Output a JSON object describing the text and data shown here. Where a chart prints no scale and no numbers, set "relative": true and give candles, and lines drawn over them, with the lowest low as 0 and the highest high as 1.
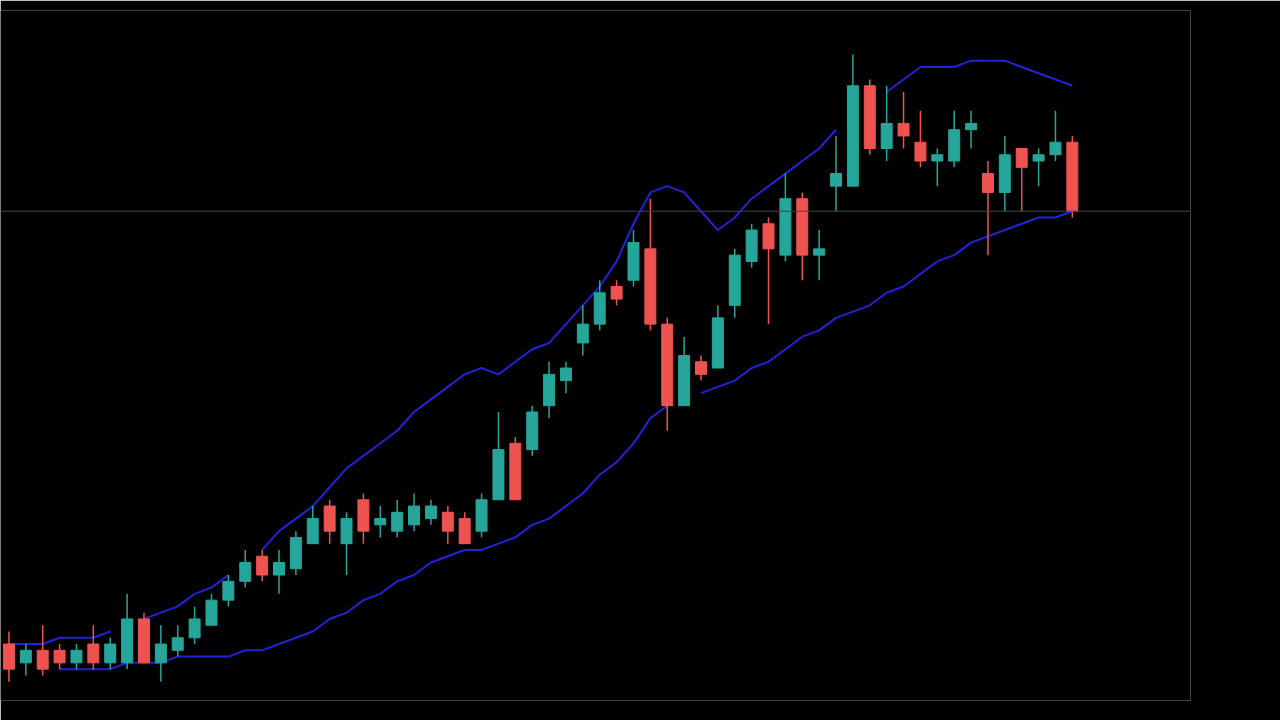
{
  "chart_data": {
    "type": "candlestick",
    "relative": true,
    "tick_labels": false,
    "grid": false,
    "categories": [
      null,
      null,
      null,
      null,
      null,
      null,
      null,
      null,
      null,
      null,
      null,
      null,
      null,
      null,
      null,
      null,
      null,
      null,
      null,
      null,
      null,
      null,
      null,
      null,
      null,
      null,
      null,
      null,
      null,
      null,
      null,
      null,
      null,
      null,
      null,
      null,
      null,
      null,
      null,
      null,
      null,
      null,
      null,
      null,
      null,
      null,
      null,
      null,
      null,
      null,
      null,
      null,
      null,
      null,
      null,
      null,
      null,
      null,
      null,
      null,
      null,
      null,
      null,
      null
    ],
    "ohlc": [
      [
        0.06,
        0.08,
        0,
        0.02
      ],
      [
        0.03,
        0.06,
        0.01,
        0.05
      ],
      [
        0.05,
        0.09,
        0.01,
        0.02
      ],
      [
        0.05,
        0.06,
        0.02,
        0.03
      ],
      [
        0.03,
        0.06,
        0.02,
        0.05
      ],
      [
        0.06,
        0.09,
        0.02,
        0.03
      ],
      [
        0.03,
        0.07,
        0.02,
        0.06
      ],
      [
        0.03,
        0.14,
        0.02,
        0.1
      ],
      [
        0.1,
        0.11,
        0.03,
        0.03
      ],
      [
        0.03,
        0.09,
        0,
        0.06
      ],
      [
        0.05,
        0.09,
        0.04,
        0.07
      ],
      [
        0.07,
        0.12,
        0.06,
        0.1
      ],
      [
        0.09,
        0.14,
        0.09,
        0.13
      ],
      [
        0.13,
        0.17,
        0.12,
        0.16
      ],
      [
        0.16,
        0.21,
        0.15,
        0.19
      ],
      [
        0.2,
        0.21,
        0.16,
        0.17
      ],
      [
        0.17,
        0.21,
        0.14,
        0.19
      ],
      [
        0.18,
        0.24,
        0.17,
        0.23
      ],
      [
        0.22,
        0.28,
        0.22,
        0.26
      ],
      [
        0.28,
        0.29,
        0.22,
        0.24
      ],
      [
        0.22,
        0.27,
        0.17,
        0.26
      ],
      [
        0.29,
        0.3,
        0.22,
        0.24
      ],
      [
        0.25,
        0.28,
        0.23,
        0.26
      ],
      [
        0.24,
        0.29,
        0.23,
        0.27
      ],
      [
        0.25,
        0.3,
        0.24,
        0.28
      ],
      [
        0.26,
        0.29,
        0.25,
        0.28
      ],
      [
        0.27,
        0.28,
        0.22,
        0.24
      ],
      [
        0.26,
        0.27,
        0.22,
        0.22
      ],
      [
        0.24,
        0.3,
        0.23,
        0.29
      ],
      [
        0.29,
        0.43,
        0.29,
        0.37
      ],
      [
        0.38,
        0.39,
        0.29,
        0.29
      ],
      [
        0.37,
        0.44,
        0.36,
        0.43
      ],
      [
        0.44,
        0.51,
        0.42,
        0.49
      ],
      [
        0.48,
        0.51,
        0.46,
        0.5
      ],
      [
        0.54,
        0.6,
        0.52,
        0.57
      ],
      [
        0.57,
        0.64,
        0.56,
        0.62
      ],
      [
        0.63,
        0.64,
        0.6,
        0.61
      ],
      [
        0.64,
        0.72,
        0.63,
        0.7
      ],
      [
        0.69,
        0.77,
        0.56,
        0.57
      ],
      [
        0.57,
        0.58,
        0.4,
        0.44
      ],
      [
        0.44,
        0.55,
        0.44,
        0.52
      ],
      [
        0.51,
        0.52,
        0.48,
        0.49
      ],
      [
        0.5,
        0.6,
        0.5,
        0.58
      ],
      [
        0.6,
        0.69,
        0.58,
        0.68
      ],
      [
        0.67,
        0.73,
        0.66,
        0.72
      ],
      [
        0.73,
        0.74,
        0.57,
        0.69
      ],
      [
        0.68,
        0.81,
        0.67,
        0.77
      ],
      [
        0.77,
        0.78,
        0.64,
        0.68
      ],
      [
        0.68,
        0.72,
        0.64,
        0.69
      ],
      [
        0.79,
        0.87,
        0.75,
        0.81
      ],
      [
        0.79,
        1.0,
        0.79,
        0.95
      ],
      [
        0.95,
        0.96,
        0.84,
        0.85
      ],
      [
        0.85,
        0.95,
        0.83,
        0.89
      ],
      [
        0.89,
        0.94,
        0.85,
        0.87
      ],
      [
        0.86,
        0.91,
        0.82,
        0.83
      ],
      [
        0.83,
        0.85,
        0.79,
        0.84
      ],
      [
        0.83,
        0.91,
        0.82,
        0.88
      ],
      [
        0.88,
        0.91,
        0.85,
        0.89
      ],
      [
        0.81,
        0.83,
        0.68,
        0.78
      ],
      [
        0.78,
        0.87,
        0.75,
        0.84
      ],
      [
        0.85,
        0.85,
        0.75,
        0.82
      ],
      [
        0.83,
        0.85,
        0.79,
        0.84
      ],
      [
        0.84,
        0.91,
        0.83,
        0.86
      ],
      [
        0.86,
        0.87,
        0.74,
        0.75
      ]
    ],
    "colors": [
      "#ef5350",
      "#26a69a",
      "#ef5350",
      "#ef5350",
      "#26a69a",
      "#ef5350",
      "#26a69a",
      "#26a69a",
      "#ef5350",
      "#26a69a",
      "#26a69a",
      "#26a69a",
      "#26a69a",
      "#26a69a",
      "#26a69a",
      "#ef5350",
      "#26a69a",
      "#26a69a",
      "#26a69a",
      "#ef5350",
      "#26a69a",
      "#ef5350",
      "#26a69a",
      "#26a69a",
      "#26a69a",
      "#26a69a",
      "#ef5350",
      "#ef5350",
      "#26a69a",
      "#26a69a",
      "#ef5350",
      "#26a69a",
      "#26a69a",
      "#26a69a",
      "#26a69a",
      "#26a69a",
      "#ef5350",
      "#26a69a",
      "#ef5350",
      "#ef5350",
      "#26a69a",
      "#ef5350",
      "#26a69a",
      "#26a69a",
      "#26a69a",
      "#ef5350",
      "#26a69a",
      "#ef5350",
      "#26a69a",
      "#26a69a",
      "#26a69a",
      "#ef5350",
      "#26a69a",
      "#ef5350",
      "#ef5350",
      "#26a69a",
      "#26a69a",
      "#26a69a",
      "#ef5350",
      "#26a69a",
      "#ef5350",
      "#26a69a",
      "#26a69a",
      "#ef5350"
    ],
    "series": [
      {
        "type": "line",
        "color": "#2222dd",
        "values": [
          0.06,
          0.06,
          0.06,
          0.07,
          0.07,
          0.07,
          0.08,
          null,
          0.1,
          0.11,
          0.12,
          0.14,
          0.15,
          0.17,
          null,
          0.21,
          0.24,
          0.26,
          0.28,
          0.31,
          0.34,
          0.36,
          0.38,
          0.4,
          0.43,
          0.45,
          0.47,
          0.49,
          0.5,
          0.49,
          0.51,
          0.53,
          0.54,
          0.57,
          0.6,
          0.63,
          0.67,
          0.73,
          0.78,
          0.79,
          0.78,
          0.75,
          0.72,
          0.74,
          0.77,
          0.79,
          0.81,
          0.83,
          0.85,
          0.88,
          null,
          null,
          0.94,
          0.96,
          0.98,
          0.98,
          0.98,
          0.99,
          0.99,
          0.99,
          0.98,
          0.97,
          0.96,
          0.95
        ]
      },
      {
        "type": "line",
        "color": "#2222dd",
        "values": [
          null,
          null,
          null,
          0.02,
          0.02,
          0.02,
          0.02,
          0.03,
          0.03,
          0.03,
          0.04,
          0.04,
          0.04,
          0.04,
          0.05,
          0.05,
          0.06,
          0.07,
          0.08,
          0.1,
          0.11,
          0.13,
          0.14,
          0.16,
          0.17,
          0.19,
          0.2,
          0.21,
          0.21,
          0.22,
          0.23,
          0.25,
          0.26,
          0.28,
          0.3,
          0.33,
          0.35,
          0.38,
          0.42,
          0.44,
          null,
          0.46,
          0.47,
          0.48,
          0.5,
          0.51,
          0.53,
          0.55,
          0.56,
          0.58,
          0.59,
          0.6,
          0.62,
          0.63,
          0.65,
          0.67,
          0.68,
          0.7,
          0.71,
          0.72,
          0.73,
          0.74,
          0.74,
          0.75
        ]
      }
    ],
    "ref_lines": [
      {
        "axis": "y",
        "value": 0.75,
        "color": "#444444"
      }
    ]
  }
}
